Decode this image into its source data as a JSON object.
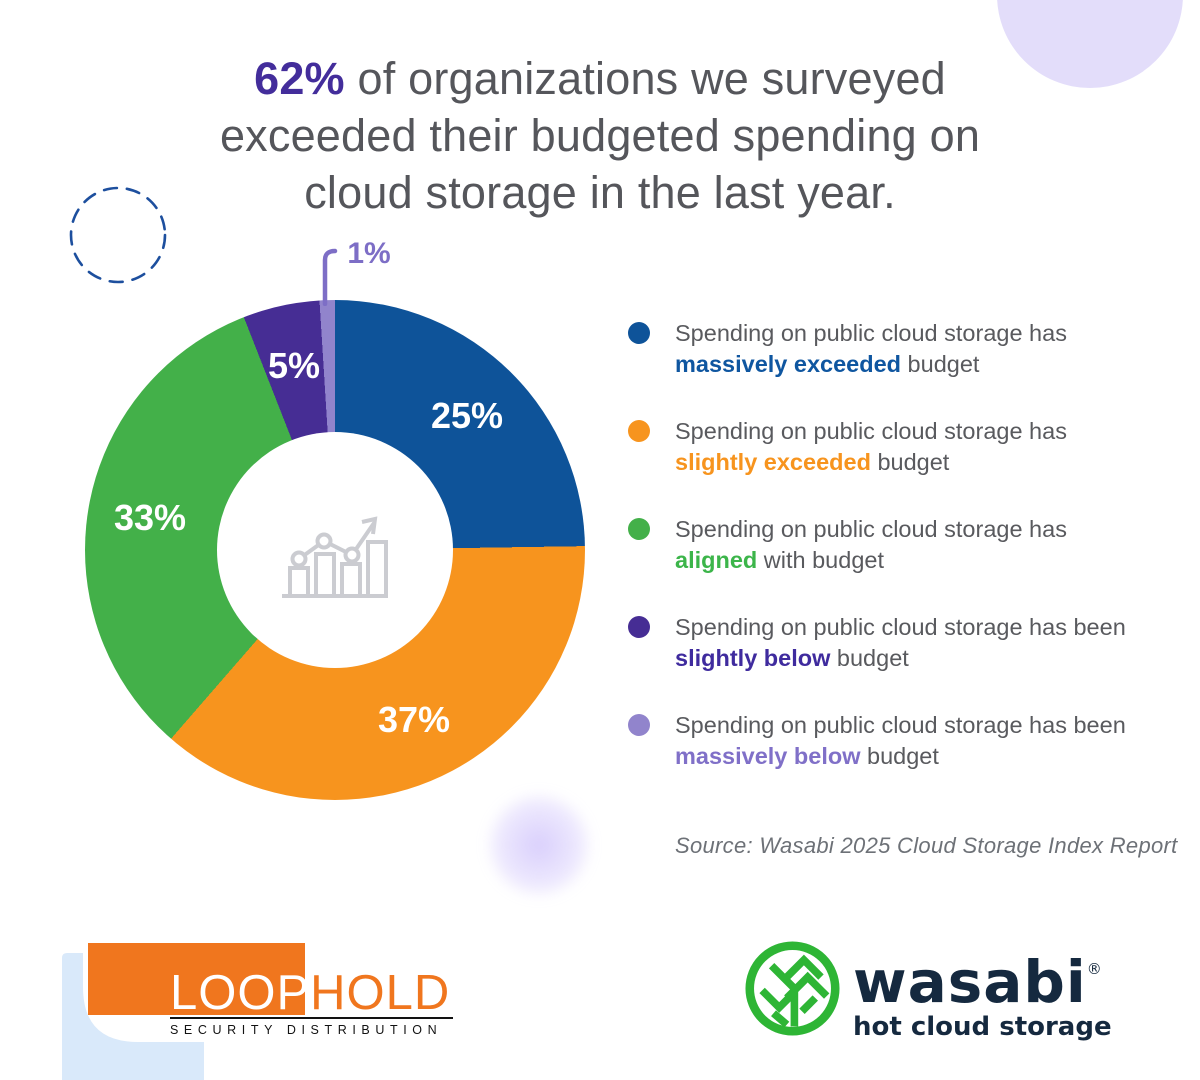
{
  "title": {
    "highlight": "62%",
    "line1_rest": " of organizations we surveyed",
    "line2": "exceeded their budgeted spending on",
    "line3": "cloud storage in the last year."
  },
  "chart_data": {
    "type": "pie",
    "subtype": "donut",
    "title": "Share of organizations by cloud storage budget outcome",
    "legend_position": "right",
    "segments": [
      {
        "label": "25%",
        "value": 25,
        "color": "#0E5399",
        "name": "massively exceeded budget"
      },
      {
        "label": "37%",
        "value": 37,
        "color": "#F7941E",
        "name": "slightly exceeded budget"
      },
      {
        "label": "33%",
        "value": 33,
        "color": "#43B049",
        "name": "aligned with budget"
      },
      {
        "label": "5%",
        "value": 5,
        "color": "#462D94",
        "name": "slightly below budget"
      },
      {
        "label": "1%",
        "value": 1,
        "color": "#9184CC",
        "name": "massively below budget",
        "outside": true,
        "callout_color": "#7D6EC6"
      }
    ]
  },
  "legend": {
    "items": [
      {
        "line1": "Spending on public cloud storage has",
        "bold": "massively exceeded",
        "post": " budget",
        "text_color": "#0F56A0"
      },
      {
        "line1": "Spending on public cloud storage has",
        "bold": "slightly exceeded",
        "post": " budget",
        "text_color": "#F7941E"
      },
      {
        "line1": "Spending on public cloud storage has",
        "bold": "aligned",
        "post": " with budget",
        "text_color": "#3CB54A"
      },
      {
        "line1": "Spending on public cloud storage has been",
        "bold": "slightly below",
        "post": " budget",
        "text_color": "#3F2B9E"
      },
      {
        "line1": "Spending on public cloud storage has been",
        "bold": "massively below",
        "post": " budget",
        "text_color": "#8070C8"
      }
    ]
  },
  "source": "Source: Wasabi 2025 Cloud Storage Index Report",
  "logos": {
    "loophold": {
      "word_left": "LOOP",
      "word_right": "HOLD",
      "tagline": "SECURITY DISTRIBUTION"
    },
    "wasabi": {
      "word": "wasabi",
      "reg": "®",
      "tagline": "hot cloud storage"
    }
  },
  "icons": {
    "center": "bar-chart-trend-icon",
    "wasabi": "wasabi-leaf-icon"
  },
  "colors": {
    "headline_accent": "#432D9B",
    "headline_text": "#55565B",
    "legend_text": "#595A5E",
    "loophold_orange": "#F0761E",
    "wasabi_green": "#2EB535",
    "wasabi_navy": "#15293F"
  }
}
